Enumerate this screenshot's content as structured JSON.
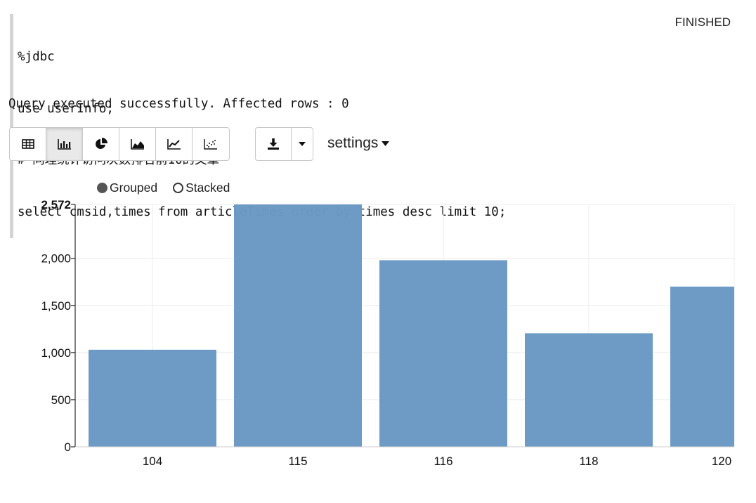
{
  "paragraph": {
    "code_lines": [
      "%jdbc",
      "use userInfo;",
      "# 同理统计访问次数排名前10的文章",
      "select cmsid,times from articleTimes order by times desc limit 10;"
    ],
    "status": "FINISHED",
    "result_message": "Query executed successfully. Affected rows : 0"
  },
  "toolbar": {
    "viz_buttons": [
      {
        "name": "table",
        "icon": "table-icon"
      },
      {
        "name": "bar-chart",
        "icon": "bar-chart-icon",
        "active": true
      },
      {
        "name": "pie-chart",
        "icon": "pie-chart-icon"
      },
      {
        "name": "area-chart",
        "icon": "area-chart-icon"
      },
      {
        "name": "line-chart",
        "icon": "line-chart-icon"
      },
      {
        "name": "scatter-chart",
        "icon": "scatter-chart-icon"
      }
    ],
    "download_icon": "download-icon",
    "settings_label": "settings"
  },
  "legend": {
    "grouped_label": "Grouped",
    "stacked_label": "Stacked",
    "selected": "Grouped"
  },
  "chart_data": {
    "type": "bar",
    "categories": [
      "104",
      "115",
      "116",
      "118",
      "120"
    ],
    "values": [
      1030,
      2572,
      1980,
      1205,
      1700
    ],
    "ylim": [
      0,
      2572
    ],
    "yticks": [
      "0",
      "500",
      "1,000",
      "1,500",
      "2,000",
      "2,572"
    ],
    "ytick_values": [
      0,
      500,
      1000,
      1500,
      2000,
      2572
    ],
    "bar_color": "#6b99c4",
    "grid": true
  }
}
